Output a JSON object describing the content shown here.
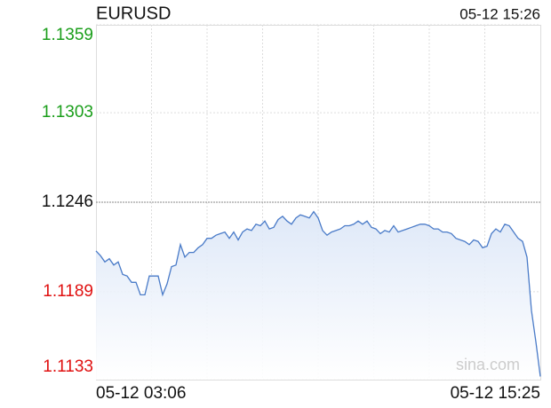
{
  "chart_data": {
    "type": "line",
    "title": "EURUSD",
    "timestamp": "05-12 15:26",
    "watermark": "sina.com",
    "series": [
      {
        "name": "EURUSD",
        "color": "#4a7bc8",
        "values": [
          1.1215,
          1.1212,
          1.1208,
          1.121,
          1.1206,
          1.1208,
          1.12,
          1.1199,
          1.1195,
          1.1195,
          1.1187,
          1.1187,
          1.1199,
          1.1199,
          1.1199,
          1.1187,
          1.1194,
          1.1205,
          1.1206,
          1.1219,
          1.1211,
          1.1214,
          1.1214,
          1.1217,
          1.1219,
          1.1223,
          1.1223,
          1.1225,
          1.1226,
          1.1227,
          1.1223,
          1.1227,
          1.1222,
          1.1227,
          1.1229,
          1.1228,
          1.1232,
          1.1231,
          1.1234,
          1.1229,
          1.123,
          1.1235,
          1.1237,
          1.1234,
          1.1232,
          1.1236,
          1.1238,
          1.1237,
          1.1236,
          1.124,
          1.1236,
          1.1228,
          1.1225,
          1.1227,
          1.1228,
          1.1229,
          1.1231,
          1.1231,
          1.1232,
          1.1234,
          1.1232,
          1.1234,
          1.123,
          1.1229,
          1.1226,
          1.1228,
          1.1227,
          1.1231,
          1.1227,
          1.1228,
          1.1229,
          1.123,
          1.1231,
          1.1232,
          1.1232,
          1.1231,
          1.1229,
          1.1229,
          1.1227,
          1.1227,
          1.1226,
          1.1223,
          1.1222,
          1.1221,
          1.1219,
          1.1222,
          1.1221,
          1.1217,
          1.1218,
          1.1226,
          1.1229,
          1.1227,
          1.1232,
          1.1231,
          1.1227,
          1.1223,
          1.1221,
          1.1211,
          1.1177,
          1.1157,
          1.1135
        ]
      }
    ],
    "xlim": [
      0,
      100
    ],
    "xticks": [
      {
        "value": 0,
        "label": "05-12 03:06"
      },
      {
        "value": 100,
        "label": "05-12 15:25"
      }
    ],
    "ylim": [
      1.1133,
      1.1359
    ],
    "yticks": [
      1.1133,
      1.1189,
      1.1246,
      1.1303,
      1.1359
    ],
    "base_value": 1.1246,
    "up_color": "#1a9e1a",
    "down_color": "#e01010",
    "base_color": "#111111",
    "area_color": "#dbe6f7",
    "grid": true
  }
}
